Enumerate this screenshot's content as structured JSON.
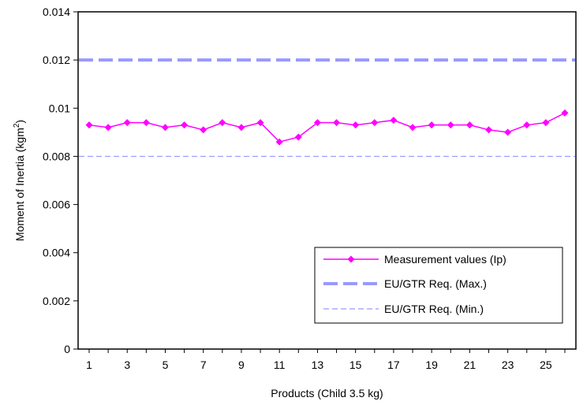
{
  "chart_data": {
    "type": "line",
    "title": "",
    "xlabel": "Products (Child 3.5 kg)",
    "ylabel": "Moment of Inertia (kgm",
    "ylabel_sup": "2",
    "ylabel_close": ")",
    "x": [
      1,
      2,
      3,
      4,
      5,
      6,
      7,
      8,
      9,
      10,
      11,
      12,
      13,
      14,
      15,
      16,
      17,
      18,
      19,
      20,
      21,
      22,
      23,
      24,
      25,
      26
    ],
    "xlim": [
      1,
      26
    ],
    "x_tick_labels": [
      "1",
      "3",
      "5",
      "7",
      "9",
      "11",
      "13",
      "15",
      "17",
      "19",
      "21",
      "23",
      "25"
    ],
    "ylim": [
      0,
      0.014
    ],
    "y_tick_labels": [
      "0",
      "0.002",
      "0.004",
      "0.006",
      "0.008",
      "0.01",
      "0.012",
      "0.014"
    ],
    "grid": false,
    "legend_position": "bottom-right",
    "series": [
      {
        "name": "Measurement values (Ip)",
        "style": "line-diamond",
        "color": "#ff00ff",
        "values": [
          0.0093,
          0.0092,
          0.0094,
          0.0094,
          0.0092,
          0.0093,
          0.0091,
          0.0094,
          0.0092,
          0.0094,
          0.0086,
          0.0088,
          0.0094,
          0.0094,
          0.0093,
          0.0094,
          0.0095,
          0.0092,
          0.0093,
          0.0093,
          0.0093,
          0.0091,
          0.009,
          0.0093,
          0.0094,
          0.0098
        ]
      },
      {
        "name": "EU/GTR Req. (Max.)",
        "style": "thick-dashed",
        "color": "#9999ff",
        "constant": 0.012
      },
      {
        "name": "EU/GTR Req. (Min.)",
        "style": "thin-dashed",
        "color": "#9999ff",
        "constant": 0.008
      }
    ]
  }
}
